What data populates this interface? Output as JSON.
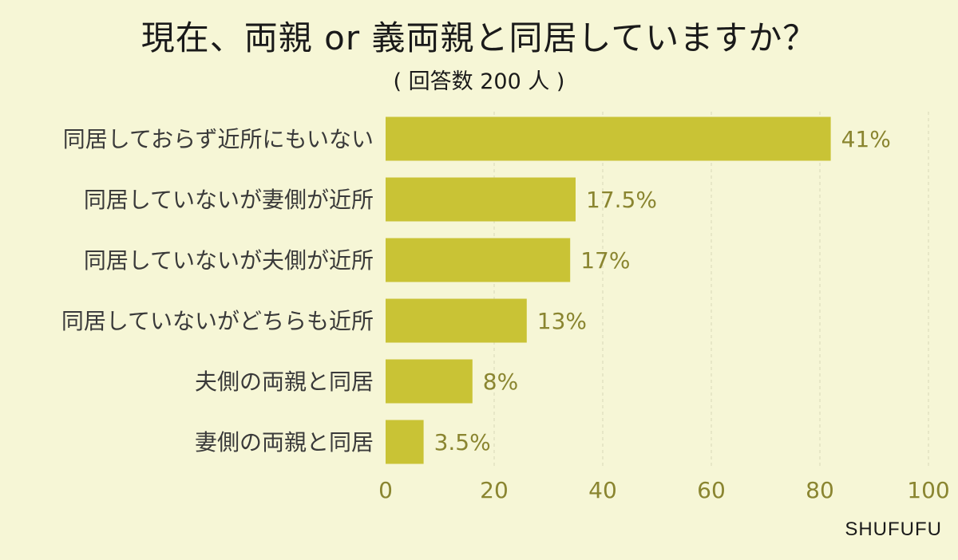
{
  "header": {
    "title": "現在、両親 or 義両親と同居していますか？",
    "subtitle": "( 回答数 200 人 )"
  },
  "brand": "SHUFUFU",
  "colors": {
    "background": "#f6f6d6",
    "bar": "#c9c335",
    "axis_text": "#8a8530",
    "label_text": "#3a3a3a",
    "grid": "#d8d8b8"
  },
  "chart_data": {
    "type": "bar",
    "orientation": "horizontal",
    "categories": [
      "同居しておらず近所にもいない",
      "同居していないが妻側が近所",
      "同居していないが夫側が近所",
      "同居していないがどちらも近所",
      "夫側の両親と同居",
      "妻側の両親と同居"
    ],
    "values": [
      82,
      35,
      34,
      26,
      16,
      7
    ],
    "data_labels": [
      "41%",
      "17.5%",
      "17%",
      "13%",
      "8%",
      "3.5%"
    ],
    "xlim": [
      0,
      100
    ],
    "xticks": [
      "0",
      "20",
      "40",
      "60",
      "80",
      "100"
    ],
    "grid": "vertical-dashed"
  }
}
